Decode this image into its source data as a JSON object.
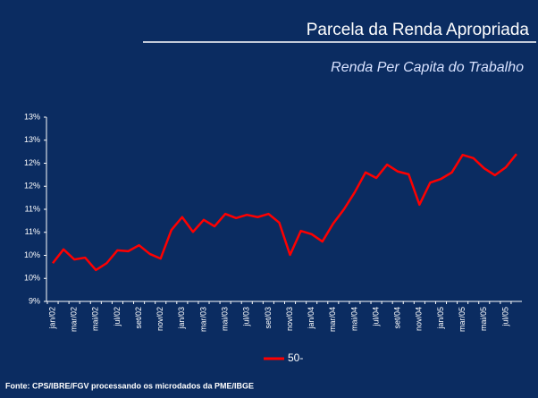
{
  "chart_data": {
    "type": "line",
    "title": "Parcela da Renda Apropriada",
    "subtitle": "Renda Per Capita do Trabalho",
    "source": "Fonte: CPS/IBRE/FGV processando os microdados da PME/IBGE",
    "categories": [
      "jan/02",
      null,
      "mar/02",
      null,
      "mai/02",
      null,
      "jul/02",
      null,
      "set/02",
      null,
      "nov/02",
      null,
      "jan/03",
      null,
      "mar/03",
      null,
      "mai/03",
      null,
      "jul/03",
      null,
      "set/03",
      null,
      "nov/03",
      null,
      "jan/04",
      null,
      "mar/04",
      null,
      "mai/04",
      null,
      "jul/04",
      null,
      "set/04",
      null,
      "nov/04",
      null,
      "jan/05",
      null,
      "mar/05",
      null,
      "mai/05",
      null,
      "jul/05",
      null
    ],
    "series": [
      {
        "name": "50-",
        "color": "#ff0000",
        "values": [
          9.83,
          10.13,
          9.91,
          9.95,
          9.68,
          9.83,
          10.11,
          10.09,
          10.22,
          10.03,
          9.93,
          10.55,
          10.83,
          10.51,
          10.77,
          10.63,
          10.9,
          10.81,
          10.88,
          10.83,
          10.9,
          10.71,
          10.01,
          10.53,
          10.46,
          10.3,
          10.69,
          11.0,
          11.37,
          11.8,
          11.68,
          11.97,
          11.82,
          11.76,
          11.1,
          11.58,
          11.66,
          11.8,
          12.18,
          12.11,
          11.89,
          11.74,
          11.91,
          12.2
        ]
      }
    ],
    "ylim": [
      9,
      13
    ],
    "yticks": [
      {
        "value": 9,
        "label": "9%"
      },
      {
        "value": 9.5,
        "label": "10%"
      },
      {
        "value": 10,
        "label": "10%"
      },
      {
        "value": 10.5,
        "label": "11%"
      },
      {
        "value": 11,
        "label": "11%"
      },
      {
        "value": 11.5,
        "label": "12%"
      },
      {
        "value": 12,
        "label": "12%"
      },
      {
        "value": 12.5,
        "label": "13%"
      },
      {
        "value": 13,
        "label": "13%"
      }
    ],
    "legend": "bottom"
  }
}
